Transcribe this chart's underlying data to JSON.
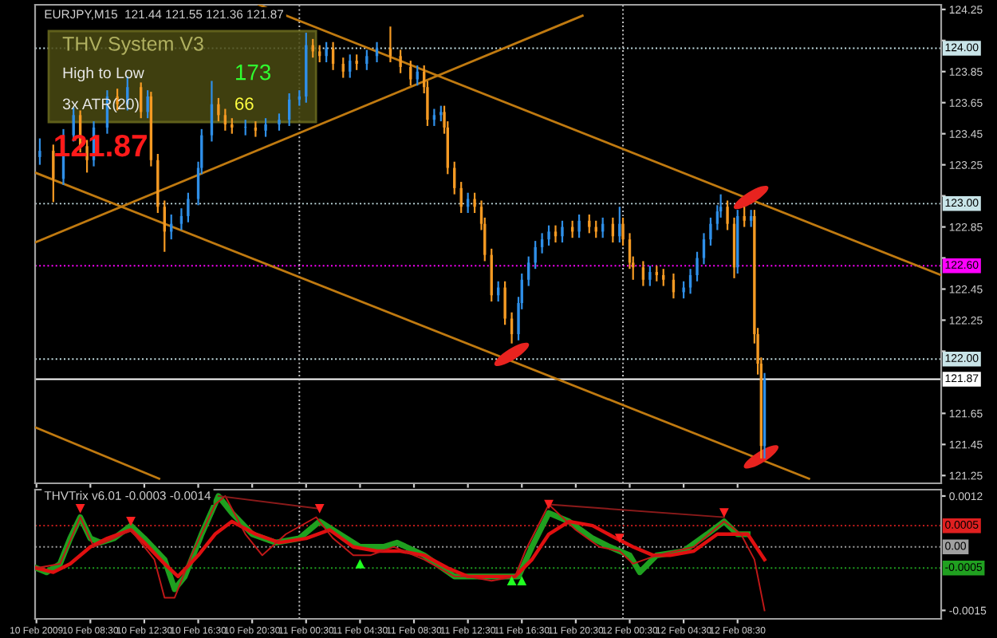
{
  "chart_data": [
    {
      "type": "candlestick",
      "title": "EURJPY,M15  121.44 121.55 121.36 121.87",
      "colors": [
        "#2f8fe8",
        "#f59a23",
        "#2f8fe8",
        "#2f8fe8",
        "#f59a23",
        "#f59a23",
        "#2f8fe8",
        "#2f8fe8",
        "#f59a23",
        "#2f8fe8",
        "#f59a23",
        "#2f8fe8",
        "#f59a23",
        "#f59a23",
        "#f59a23",
        "#2f8fe8",
        "#2f8fe8",
        "#2f8fe8",
        "#2f8fe8",
        "#2f8fe8",
        "#2f8fe8",
        "#f59a23",
        "#f59a23",
        "#f59a23",
        "#2f8fe8",
        "#f59a23",
        "#2f8fe8",
        "#2f8fe8",
        "#2f8fe8",
        "#2f8fe8",
        "#2f8fe8",
        "#f59a23",
        "#f59a23",
        "#2f8fe8",
        "#f59a23",
        "#f59a23",
        "#2f8fe8",
        "#f59a23",
        "#2f8fe8",
        "#2f8fe8",
        "#f59a23",
        "#f59a23",
        "#f59a23",
        "#2f8fe8",
        "#f59a23",
        "#f59a23",
        "#2f8fe8",
        "#2f8fe8",
        "#f59a23",
        "#f59a23",
        "#f59a23",
        "#f59a23",
        "#2f8fe8",
        "#f59a23",
        "#f59a23",
        "#f59a23",
        "#f59a23",
        "#2f8fe8",
        "#f59a23",
        "#f59a23",
        "#2f8fe8",
        "#2f8fe8",
        "#2f8fe8",
        "#2f8fe8",
        "#2f8fe8",
        "#2f8fe8",
        "#f59a23",
        "#2f8fe8",
        "#f59a23",
        "#2f8fe8",
        "#f59a23",
        "#f59a23",
        "#2f8fe8",
        "#f59a23",
        "#2f8fe8",
        "#f59a23",
        "#f59a23",
        "#f59a23",
        "#f59a23",
        "#2f8fe8",
        "#f59a23",
        "#f59a23",
        "#f59a23",
        "#2f8fe8",
        "#2f8fe8",
        "#2f8fe8",
        "#2f8fe8",
        "#2f8fe8",
        "#2f8fe8",
        "#2f8fe8",
        "#f59a23",
        "#f59a23",
        "#2f8fe8",
        "#f59a23",
        "#2f8fe8",
        "#f59a23",
        "#f59a23",
        "#f59a23",
        "#2f8fe8"
      ],
      "x": [
        "2009-02-10T04:45",
        "2009-02-10T05:45",
        "2009-02-10T06:30",
        "2009-02-10T07:15",
        "2009-02-10T07:45",
        "2009-02-10T08:15",
        "2009-02-10T08:45",
        "2009-02-10T09:45",
        "2009-02-10T10:30",
        "2009-02-10T11:15",
        "2009-02-10T12:15",
        "2009-02-10T12:45",
        "2009-02-10T13:00",
        "2009-02-10T13:30",
        "2009-02-10T14:00",
        "2009-02-10T14:30",
        "2009-02-10T15:15",
        "2009-02-10T15:45",
        "2009-02-10T16:30",
        "2009-02-10T16:45",
        "2009-02-10T17:30",
        "2009-02-10T18:00",
        "2009-02-10T18:30",
        "2009-02-10T19:00",
        "2009-02-10T20:00",
        "2009-02-10T20:45",
        "2009-02-10T21:30",
        "2009-02-10T22:30",
        "2009-02-10T23:15",
        "2009-02-11T00:00",
        "2009-02-11T00:30",
        "2009-02-11T01:00",
        "2009-02-11T01:30",
        "2009-02-11T02:00",
        "2009-02-11T02:30",
        "2009-02-11T03:15",
        "2009-02-11T03:45",
        "2009-02-11T04:15",
        "2009-02-11T05:00",
        "2009-02-11T05:45",
        "2009-02-11T06:45",
        "2009-02-11T07:30",
        "2009-02-11T08:15",
        "2009-02-11T08:45",
        "2009-02-11T09:15",
        "2009-02-11T09:30",
        "2009-02-11T10:00",
        "2009-02-11T10:30",
        "2009-02-11T10:45",
        "2009-02-11T11:00",
        "2009-02-11T11:30",
        "2009-02-11T12:00",
        "2009-02-11T12:30",
        "2009-02-11T13:00",
        "2009-02-11T13:30",
        "2009-02-11T13:45",
        "2009-02-11T14:15",
        "2009-02-11T14:45",
        "2009-02-11T15:15",
        "2009-02-11T15:45",
        "2009-02-11T16:15",
        "2009-02-11T16:30",
        "2009-02-11T17:00",
        "2009-02-11T17:30",
        "2009-02-11T18:00",
        "2009-02-11T18:30",
        "2009-02-11T19:00",
        "2009-02-11T19:30",
        "2009-02-11T20:15",
        "2009-02-11T20:45",
        "2009-02-11T21:30",
        "2009-02-11T22:00",
        "2009-02-11T22:30",
        "2009-02-11T23:15",
        "2009-02-11T23:45",
        "2009-02-12T00:00",
        "2009-02-12T00:30",
        "2009-02-12T00:45",
        "2009-02-12T01:30",
        "2009-02-12T02:00",
        "2009-02-12T02:30",
        "2009-02-12T03:00",
        "2009-02-12T03:45",
        "2009-02-12T04:30",
        "2009-02-12T05:00",
        "2009-02-12T05:30",
        "2009-02-12T06:00",
        "2009-02-12T06:30",
        "2009-02-12T07:00",
        "2009-02-12T07:15",
        "2009-02-12T07:45",
        "2009-02-12T08:15",
        "2009-02-12T08:30",
        "2009-02-12T09:00",
        "2009-02-12T09:30",
        "2009-02-12T09:45",
        "2009-02-12T10:00",
        "2009-02-12T10:15",
        "2009-02-12T10:30"
      ],
      "ohlc": [
        [
          123.3,
          123.42,
          123.25,
          123.34
        ],
        [
          123.34,
          123.38,
          123.01,
          123.16
        ],
        [
          123.16,
          123.48,
          123.12,
          123.44
        ],
        [
          123.44,
          123.62,
          123.4,
          123.57
        ],
        [
          123.57,
          123.6,
          123.33,
          123.37
        ],
        [
          123.37,
          123.41,
          123.2,
          123.28
        ],
        [
          123.28,
          123.53,
          123.24,
          123.49
        ],
        [
          123.49,
          123.73,
          123.45,
          123.69
        ],
        [
          123.69,
          123.74,
          123.6,
          123.64
        ],
        [
          123.64,
          123.82,
          123.6,
          123.75
        ],
        [
          123.75,
          123.78,
          123.55,
          123.59
        ],
        [
          123.59,
          123.73,
          123.55,
          123.69
        ],
        [
          123.69,
          123.72,
          123.24,
          123.28
        ],
        [
          123.28,
          123.32,
          122.94,
          122.98
        ],
        [
          122.98,
          123.02,
          122.69,
          122.82
        ],
        [
          122.82,
          122.93,
          122.77,
          122.87
        ],
        [
          122.87,
          122.97,
          122.83,
          122.92
        ],
        [
          122.92,
          123.07,
          122.88,
          123.03
        ],
        [
          123.03,
          123.27,
          122.99,
          123.23
        ],
        [
          123.23,
          123.48,
          123.19,
          123.44
        ],
        [
          123.44,
          123.79,
          123.4,
          123.64
        ],
        [
          123.64,
          123.68,
          123.53,
          123.57
        ],
        [
          123.57,
          123.61,
          123.47,
          123.51
        ],
        [
          123.51,
          123.55,
          123.45,
          123.49
        ],
        [
          123.49,
          123.54,
          123.44,
          123.49
        ],
        [
          123.49,
          123.53,
          123.43,
          123.47
        ],
        [
          123.47,
          123.55,
          123.43,
          123.51
        ],
        [
          123.51,
          123.58,
          123.47,
          123.54
        ],
        [
          123.54,
          123.71,
          123.5,
          123.67
        ],
        [
          123.67,
          123.73,
          123.63,
          123.69
        ],
        [
          123.69,
          124.1,
          123.65,
          124.02
        ],
        [
          124.02,
          124.06,
          123.94,
          123.98
        ],
        [
          123.98,
          124.02,
          123.91,
          123.95
        ],
        [
          123.95,
          124.04,
          123.91,
          124.0
        ],
        [
          124.0,
          124.04,
          123.86,
          123.9
        ],
        [
          123.9,
          123.94,
          123.81,
          123.85
        ],
        [
          123.85,
          123.96,
          123.81,
          123.92
        ],
        [
          123.92,
          123.96,
          123.86,
          123.9
        ],
        [
          123.9,
          123.99,
          123.86,
          123.95
        ],
        [
          123.95,
          124.04,
          123.91,
          124.0
        ],
        [
          124.0,
          124.14,
          123.91,
          123.95
        ],
        [
          123.95,
          123.99,
          123.84,
          123.88
        ],
        [
          123.88,
          123.92,
          123.76,
          123.8
        ],
        [
          123.8,
          123.89,
          123.76,
          123.85
        ],
        [
          123.85,
          123.89,
          123.71,
          123.75
        ],
        [
          123.75,
          123.79,
          123.5,
          123.54
        ],
        [
          123.54,
          123.61,
          123.5,
          123.57
        ],
        [
          123.57,
          123.63,
          123.53,
          123.59
        ],
        [
          123.59,
          123.63,
          123.45,
          123.49
        ],
        [
          123.49,
          123.53,
          123.19,
          123.23
        ],
        [
          123.23,
          123.27,
          123.06,
          123.1
        ],
        [
          123.1,
          123.14,
          122.94,
          122.98
        ],
        [
          122.98,
          123.07,
          122.94,
          123.03
        ],
        [
          123.03,
          123.07,
          122.94,
          122.98
        ],
        [
          122.98,
          123.02,
          122.83,
          122.87
        ],
        [
          122.87,
          122.91,
          122.63,
          122.67
        ],
        [
          122.67,
          122.71,
          122.37,
          122.41
        ],
        [
          122.41,
          122.5,
          122.37,
          122.46
        ],
        [
          122.46,
          122.5,
          122.22,
          122.26
        ],
        [
          122.26,
          122.3,
          122.1,
          122.16
        ],
        [
          122.16,
          122.4,
          122.12,
          122.36
        ],
        [
          122.36,
          122.55,
          122.32,
          122.51
        ],
        [
          122.51,
          122.66,
          122.47,
          122.62
        ],
        [
          122.62,
          122.76,
          122.58,
          122.72
        ],
        [
          122.72,
          122.81,
          122.68,
          122.77
        ],
        [
          122.77,
          122.86,
          122.73,
          122.82
        ],
        [
          122.82,
          122.86,
          122.75,
          122.79
        ],
        [
          122.79,
          122.89,
          122.75,
          122.85
        ],
        [
          122.85,
          122.89,
          122.78,
          122.82
        ],
        [
          122.82,
          122.93,
          122.78,
          122.89
        ],
        [
          122.89,
          122.93,
          122.81,
          122.85
        ],
        [
          122.85,
          122.89,
          122.78,
          122.82
        ],
        [
          122.82,
          122.91,
          122.78,
          122.87
        ],
        [
          122.87,
          122.91,
          122.75,
          122.79
        ],
        [
          122.79,
          122.98,
          122.75,
          122.87
        ],
        [
          122.87,
          122.91,
          122.73,
          122.77
        ],
        [
          122.77,
          122.81,
          122.58,
          122.62
        ],
        [
          122.62,
          122.66,
          122.51,
          122.59
        ],
        [
          122.59,
          122.63,
          122.47,
          122.51
        ],
        [
          122.51,
          122.6,
          122.47,
          122.56
        ],
        [
          122.56,
          122.6,
          122.5,
          122.54
        ],
        [
          122.54,
          122.58,
          122.47,
          122.51
        ],
        [
          122.51,
          122.55,
          122.39,
          122.43
        ],
        [
          122.43,
          122.5,
          122.39,
          122.46
        ],
        [
          122.46,
          122.58,
          122.42,
          122.54
        ],
        [
          122.54,
          122.69,
          122.5,
          122.65
        ],
        [
          122.65,
          122.81,
          122.61,
          122.77
        ],
        [
          122.77,
          122.91,
          122.73,
          122.87
        ],
        [
          122.87,
          122.99,
          122.83,
          122.95
        ],
        [
          122.95,
          123.06,
          122.91,
          122.98
        ],
        [
          122.98,
          123.02,
          122.83,
          122.87
        ],
        [
          122.87,
          122.91,
          122.52,
          122.59
        ],
        [
          122.59,
          122.96,
          122.55,
          122.92
        ],
        [
          122.92,
          122.98,
          122.85,
          122.89
        ],
        [
          122.89,
          122.96,
          122.85,
          122.92
        ],
        [
          122.92,
          122.96,
          122.1,
          122.16
        ],
        [
          122.16,
          122.2,
          121.9,
          121.97
        ],
        [
          121.97,
          122.01,
          121.36,
          121.44
        ],
        [
          121.44,
          121.91,
          121.36,
          121.87
        ]
      ],
      "series": [
        {
          "type": "line",
          "color": "#c07a10",
          "x": [
            "2009-02-10T21:00",
            "2009-02-12T23:36"
          ],
          "values": [
            124.28,
            122.54
          ]
        },
        {
          "type": "line",
          "color": "#c07a10",
          "x": [
            "2009-02-10T04:24",
            "2009-02-12T13:48"
          ],
          "values": [
            123.2,
            121.23
          ]
        },
        {
          "type": "line",
          "color": "#c07a10",
          "x": [
            "2009-02-10T04:24",
            "2009-02-11T21:00"
          ],
          "values": [
            122.75,
            124.21
          ]
        },
        {
          "type": "line",
          "color": "#c07a10",
          "x": [
            "2009-02-10T04:24",
            "2009-02-10T13:36"
          ],
          "values": [
            121.56,
            121.23
          ]
        },
        {
          "type": "scatter",
          "color": "#e8231f",
          "x": [
            "2009-02-11T15:45",
            "2009-02-12T09:30",
            "2009-02-12T10:15"
          ],
          "values": [
            122.03,
            123.04,
            121.37
          ]
        }
      ],
      "xlim": [
        "2009-02-10T04:24",
        "2009-02-12T23:36"
      ],
      "ylim": [
        121.2,
        124.28
      ],
      "yticks": [
        121.25,
        121.45,
        121.65,
        {
          "value": 122.05,
          "label": null
        },
        122.25,
        122.45,
        {
          "value": 122.65,
          "label": null
        },
        122.85,
        {
          "value": 123.05,
          "label": null
        },
        123.25,
        123.45,
        123.65,
        123.85,
        {
          "value": 124.05,
          "label": null
        },
        124.25
      ],
      "xticks": [
        {
          "value": "2009-02-10T04:30",
          "label": null
        },
        {
          "value": "2009-02-10T08:30",
          "label": null
        },
        {
          "value": "2009-02-10T12:30",
          "label": null
        },
        {
          "value": "2009-02-10T16:30",
          "label": null
        },
        {
          "value": "2009-02-10T20:30",
          "label": null
        },
        {
          "value": "2009-02-11T00:30",
          "label": null
        },
        {
          "value": "2009-02-11T04:30",
          "label": null
        },
        {
          "value": "2009-02-11T08:30",
          "label": null
        },
        {
          "value": "2009-02-11T12:30",
          "label": null
        },
        {
          "value": "2009-02-11T16:30",
          "label": null
        },
        {
          "value": "2009-02-11T20:30",
          "label": null
        },
        {
          "value": "2009-02-12T00:30",
          "label": null
        },
        {
          "value": "2009-02-12T04:30",
          "label": null
        },
        {
          "value": "2009-02-12T08:30",
          "label": null
        }
      ],
      "tick_labels": "y",
      "ref_lines": [
        {
          "axis": "y",
          "value": 124.0,
          "label": "124.00",
          "color": "#c8e4e8",
          "line_style": "dotted"
        },
        {
          "axis": "y",
          "value": 123.0,
          "label": "123.00",
          "color": "#c8e4e8",
          "line_style": "dotted"
        },
        {
          "axis": "y",
          "value": 122.6,
          "label": "122.60",
          "color": "#ff00ff",
          "line_style": "dotted"
        },
        {
          "axis": "y",
          "value": 122.0,
          "label": "122.00",
          "color": "#c8e4e8",
          "line_style": "dotted"
        },
        {
          "axis": "y",
          "value": 121.87,
          "label": "121.87",
          "color": "#ffffff",
          "line_style": "solid"
        },
        {
          "axis": "x",
          "value": "2009-02-11T00:00",
          "color": "#c8c8c8",
          "line_style": "dotted"
        },
        {
          "axis": "x",
          "value": "2009-02-12T00:00",
          "color": "#c8c8c8",
          "line_style": "dotted"
        }
      ],
      "annotations": [
        "THV System V3",
        "High to Low",
        "173",
        "3x ATR(20)",
        "66",
        "121.87"
      ],
      "grid": false,
      "legend": false
    },
    {
      "type": "line",
      "title": "THVTrix v6.01 -0.0003 -0.0014",
      "series": [
        {
          "color": "#1fa01f",
          "x": [
            "2009-02-10T04:30",
            "2009-02-10T05:15",
            "2009-02-10T06:15",
            "2009-02-10T07:00",
            "2009-02-10T07:45",
            "2009-02-10T08:30",
            "2009-02-10T09:15",
            "2009-02-10T10:15",
            "2009-02-10T11:30",
            "2009-02-10T12:30",
            "2009-02-10T14:00",
            "2009-02-10T14:45",
            "2009-02-10T15:30",
            "2009-02-10T16:45",
            "2009-02-10T18:00",
            "2009-02-10T19:00",
            "2009-02-10T20:30",
            "2009-02-10T22:15",
            "2009-02-11T00:00",
            "2009-02-11T01:30",
            "2009-02-11T02:30",
            "2009-02-11T04:30",
            "2009-02-11T06:15",
            "2009-02-11T07:15",
            "2009-02-11T09:15",
            "2009-02-11T11:30",
            "2009-02-11T13:15",
            "2009-02-11T15:30",
            "2009-02-11T16:15",
            "2009-02-11T17:15",
            "2009-02-11T18:30",
            "2009-02-11T20:00",
            "2009-02-11T21:45",
            "2009-02-11T23:00",
            "2009-02-12T00:30",
            "2009-02-12T01:15",
            "2009-02-12T02:30",
            "2009-02-12T04:30",
            "2009-02-12T06:15",
            "2009-02-12T07:30",
            "2009-02-12T08:30",
            "2009-02-12T09:15"
          ],
          "values": [
            -0.0005,
            -0.0006,
            -0.0004,
            0.0002,
            0.0007,
            0.0002,
            0.0001,
            0.0002,
            0.0005,
            0.0002,
            -0.0003,
            -0.001,
            -0.0007,
            0.0003,
            0.0012,
            0.0008,
            0.0003,
            0.0001,
            0.0002,
            0.0006,
            0.0004,
            0.0,
            0.0,
            0.0001,
            -0.0002,
            -0.0007,
            -0.0007,
            -0.0007,
            -0.0007,
            0.0,
            0.0008,
            0.0006,
            0.0002,
            0.0,
            -0.0002,
            -0.0006,
            -0.0002,
            -0.0001,
            0.0003,
            0.0006,
            0.0003,
            0.0003
          ]
        },
        {
          "color": "#e01010",
          "x": [
            "2009-02-10T04:30",
            "2009-02-10T05:45",
            "2009-02-10T07:00",
            "2009-02-10T08:30",
            "2009-02-10T09:45",
            "2009-02-10T11:30",
            "2009-02-10T12:30",
            "2009-02-10T14:00",
            "2009-02-10T15:00",
            "2009-02-10T16:30",
            "2009-02-10T17:45",
            "2009-02-10T19:00",
            "2009-02-10T20:45",
            "2009-02-10T22:30",
            "2009-02-11T00:30",
            "2009-02-11T02:15",
            "2009-02-11T04:00",
            "2009-02-11T05:45",
            "2009-02-11T07:30",
            "2009-02-11T09:15",
            "2009-02-11T11:00",
            "2009-02-11T12:30",
            "2009-02-11T14:15",
            "2009-02-11T16:00",
            "2009-02-11T17:15",
            "2009-02-11T18:30",
            "2009-02-11T20:00",
            "2009-02-11T21:45",
            "2009-02-11T23:30",
            "2009-02-12T00:45",
            "2009-02-12T02:15",
            "2009-02-12T03:30",
            "2009-02-12T05:15",
            "2009-02-12T07:00",
            "2009-02-12T08:30",
            "2009-02-12T09:15",
            "2009-02-12T10:30"
          ],
          "values": [
            -0.0005,
            -0.0006,
            -0.0004,
            0.0,
            0.0002,
            0.0004,
            0.0001,
            -0.0004,
            -0.0007,
            -0.0002,
            0.0003,
            0.0006,
            0.0003,
            0.0001,
            0.0002,
            0.0004,
            0.0,
            -0.0001,
            -0.0001,
            -0.0002,
            -0.0005,
            -0.0007,
            -0.0007,
            -0.0007,
            -0.0003,
            0.0003,
            0.0006,
            0.0005,
            0.0002,
            0.0,
            -0.0002,
            -0.0002,
            -0.0001,
            0.0003,
            0.0003,
            0.0003,
            -0.0003
          ]
        },
        {
          "color": "#c01818",
          "x": [
            "2009-02-10T04:30",
            "2009-02-10T06:15",
            "2009-02-10T07:45",
            "2009-02-10T08:45",
            "2009-02-10T10:15",
            "2009-02-10T11:30",
            "2009-02-10T13:15",
            "2009-02-10T14:00",
            "2009-02-10T14:45",
            "2009-02-10T16:00",
            "2009-02-10T17:45",
            "2009-02-10T18:30",
            "2009-02-10T20:00",
            "2009-02-10T21:15",
            "2009-02-10T23:00",
            "2009-02-11T01:15",
            "2009-02-11T02:30",
            "2009-02-11T04:00",
            "2009-02-11T05:15",
            "2009-02-11T07:00",
            "2009-02-11T09:15",
            "2009-02-11T11:30",
            "2009-02-11T12:30",
            "2009-02-11T14:15",
            "2009-02-11T16:00",
            "2009-02-11T16:45",
            "2009-02-11T18:30",
            "2009-02-11T20:30",
            "2009-02-11T22:15",
            "2009-02-11T23:45",
            "2009-02-12T00:45",
            "2009-02-12T02:30",
            "2009-02-12T05:15",
            "2009-02-12T07:30",
            "2009-02-12T08:45",
            "2009-02-12T09:45",
            "2009-02-12T10:30"
          ],
          "values": [
            -0.0005,
            -0.0004,
            0.0007,
            0.0,
            0.0002,
            0.0004,
            -0.0003,
            -0.0012,
            -0.0012,
            -0.0002,
            0.001,
            0.0012,
            0.0003,
            -0.0002,
            0.0003,
            0.0007,
            0.0002,
            -0.0002,
            -0.0002,
            0.0,
            -0.0003,
            -0.0007,
            -0.0007,
            -0.0008,
            -0.0007,
            -0.0001,
            0.001,
            0.0004,
            0.0,
            -0.0001,
            -0.0004,
            -0.0002,
            0.0,
            0.0006,
            0.0003,
            -0.0003,
            -0.0015
          ]
        },
        {
          "color": "#8b1a1a",
          "x": [
            "2009-02-10T18:00",
            "2009-02-11T01:30"
          ],
          "values": [
            0.0012,
            0.0009
          ]
        },
        {
          "color": "#8b1a1a",
          "x": [
            "2009-02-11T18:30",
            "2009-02-12T07:30"
          ],
          "values": [
            0.001,
            0.0007
          ]
        },
        {
          "type": "scatter",
          "marker": "triangle",
          "color": "#ff2020",
          "x": [
            "2009-02-10T07:45",
            "2009-02-10T11:30",
            "2009-02-11T01:30",
            "2009-02-11T18:30",
            "2009-02-11T23:45",
            "2009-02-12T07:30"
          ],
          "values": [
            0.0009,
            0.0006,
            0.0009,
            0.001,
            0.0002,
            0.0008
          ]
        },
        {
          "type": "scatter",
          "marker": "triangle",
          "color": "#20ff20",
          "x": [
            "2009-02-11T04:30",
            "2009-02-11T15:45",
            "2009-02-11T16:30"
          ],
          "values": [
            -0.0004,
            -0.0008,
            -0.0008
          ]
        }
      ],
      "xlim": [
        "2009-02-10T04:24",
        "2009-02-12T23:36"
      ],
      "ylim": [
        -0.0017,
        0.00135
      ],
      "yticks": [
        {
          "value": -0.0015,
          "label": "-0.0015"
        },
        {
          "value": 0.0012,
          "label": "0.0012"
        }
      ],
      "xticks": [
        {
          "value": "2009-02-10T04:30",
          "label": "10 Feb 2009"
        },
        {
          "value": "2009-02-10T08:30",
          "label": "10 Feb 08:30"
        },
        {
          "value": "2009-02-10T12:30",
          "label": "10 Feb 12:30"
        },
        {
          "value": "2009-02-10T16:30",
          "label": "10 Feb 16:30"
        },
        {
          "value": "2009-02-10T20:30",
          "label": "10 Feb 20:30"
        },
        {
          "value": "2009-02-11T00:30",
          "label": "11 Feb 00:30"
        },
        {
          "value": "2009-02-11T04:30",
          "label": "11 Feb 04:30"
        },
        {
          "value": "2009-02-11T08:30",
          "label": "11 Feb 08:30"
        },
        {
          "value": "2009-02-11T12:30",
          "label": "11 Feb 12:30"
        },
        {
          "value": "2009-02-11T16:30",
          "label": "11 Feb 16:30"
        },
        {
          "value": "2009-02-11T20:30",
          "label": "11 Feb 20:30"
        },
        {
          "value": "2009-02-12T00:30",
          "label": "12 Feb 00:30"
        },
        {
          "value": "2009-02-12T04:30",
          "label": "12 Feb 04:30"
        },
        {
          "value": "2009-02-12T08:30",
          "label": "12 Feb 08:30"
        }
      ],
      "ref_lines": [
        {
          "axis": "y",
          "value": 0.0005,
          "label": "0.0005",
          "color": "#e02020",
          "line_style": "dotted"
        },
        {
          "axis": "y",
          "value": 0.0,
          "label": "0.00",
          "color": "#a0a0a0",
          "line_style": "dotted"
        },
        {
          "axis": "y",
          "value": -0.0005,
          "label": "-0.0005",
          "color": "#20a020",
          "line_style": "dotted"
        },
        {
          "axis": "x",
          "value": "2009-02-11T00:00",
          "color": "#c8c8c8",
          "line_style": "dotted"
        },
        {
          "axis": "x",
          "value": "2009-02-12T00:00",
          "color": "#c8c8c8",
          "line_style": "dotted"
        }
      ],
      "grid": false,
      "legend": false
    }
  ]
}
